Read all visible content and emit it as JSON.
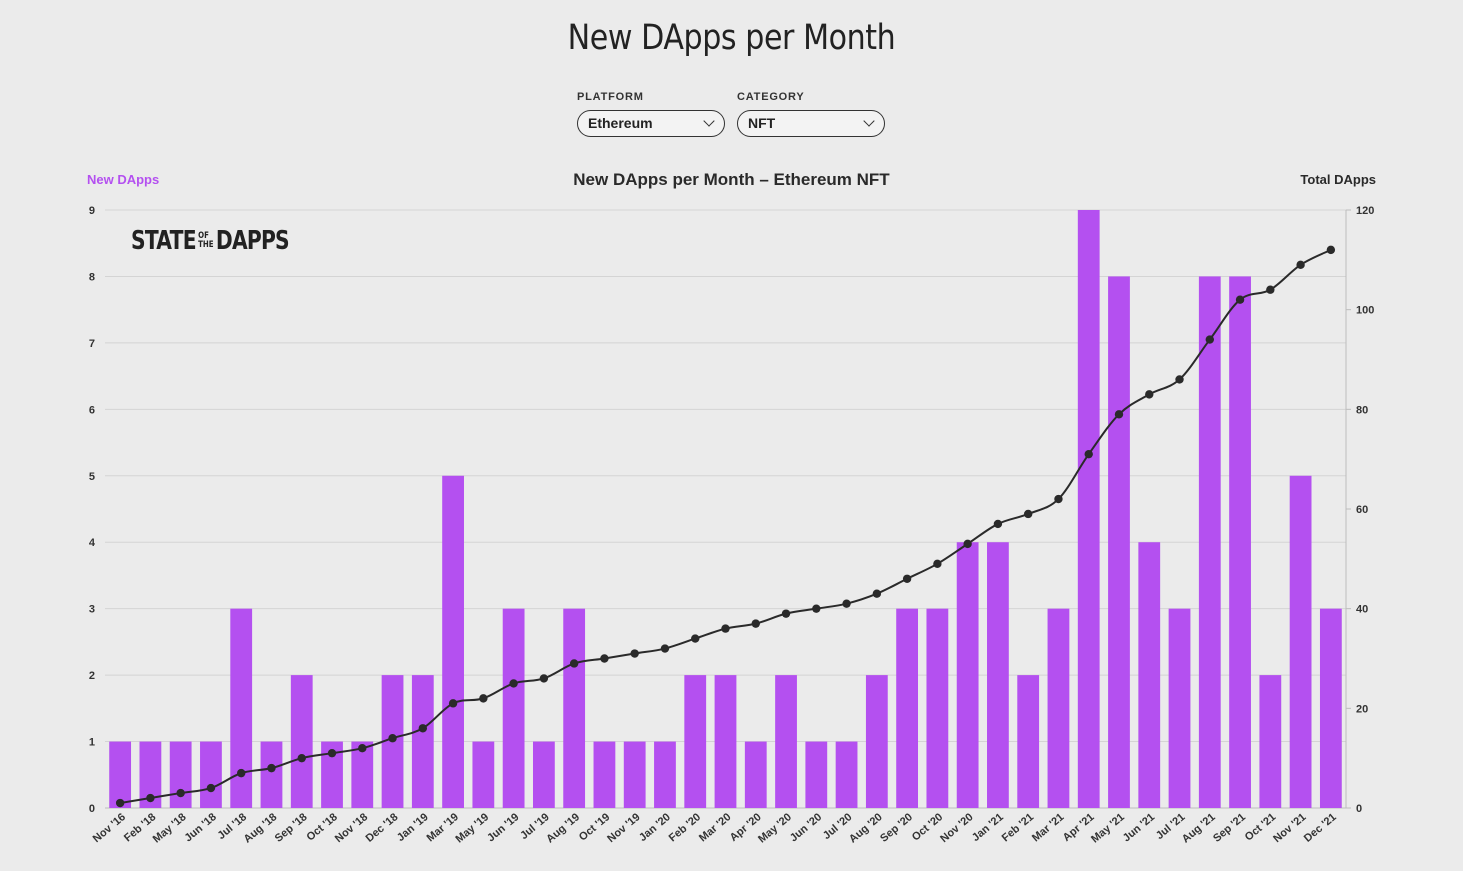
{
  "page": {
    "title": "New DApps per Month"
  },
  "filters": {
    "platform": {
      "label": "PLATFORM",
      "value": "Ethereum"
    },
    "category": {
      "label": "CATEGORY",
      "value": "NFT"
    }
  },
  "logo": {
    "text_left": "STATE",
    "text_of": "OF",
    "text_the": "THE",
    "text_right": "DAPPS"
  },
  "colors": {
    "bar": "#b450f0",
    "line": "#2a2a2a",
    "grid": "#d4d4d4",
    "axis": "#bdbdbd"
  },
  "chart_data": {
    "type": "bar",
    "title": "New DApps per Month – Ethereum NFT",
    "categories": [
      "Nov '16",
      "Feb '18",
      "May '18",
      "Jun '18",
      "Jul '18",
      "Aug '18",
      "Sep '18",
      "Oct '18",
      "Nov '18",
      "Dec '18",
      "Jan '19",
      "Mar '19",
      "May '19",
      "Jun '19",
      "Jul '19",
      "Aug '19",
      "Oct '19",
      "Nov '19",
      "Jan '20",
      "Feb '20",
      "Mar '20",
      "Apr '20",
      "May '20",
      "Jun '20",
      "Jul '20",
      "Aug '20",
      "Sep '20",
      "Oct '20",
      "Nov '20",
      "Jan '21",
      "Feb '21",
      "Mar '21",
      "Apr '21",
      "May '21",
      "Jun '21",
      "Jul '21",
      "Aug '21",
      "Sep '21",
      "Oct '21",
      "Nov '21",
      "Dec '21"
    ],
    "series": [
      {
        "name": "New DApps",
        "axis": "left",
        "kind": "bar",
        "values": [
          1,
          1,
          1,
          1,
          3,
          1,
          2,
          1,
          1,
          2,
          2,
          5,
          1,
          3,
          1,
          3,
          1,
          1,
          1,
          2,
          2,
          1,
          2,
          1,
          1,
          2,
          3,
          3,
          4,
          4,
          2,
          3,
          9,
          8,
          4,
          3,
          8,
          8,
          2,
          5,
          3
        ]
      },
      {
        "name": "Total DApps",
        "axis": "right",
        "kind": "line",
        "values": [
          1,
          2,
          3,
          4,
          7,
          8,
          10,
          11,
          12,
          14,
          16,
          21,
          22,
          25,
          26,
          29,
          30,
          31,
          32,
          34,
          36,
          37,
          39,
          40,
          41,
          43,
          46,
          49,
          53,
          57,
          59,
          62,
          71,
          79,
          83,
          86,
          94,
          102,
          104,
          109,
          112
        ]
      }
    ],
    "y_left": {
      "label": "New DApps",
      "min": 0,
      "max": 9,
      "ticks": [
        0,
        1,
        2,
        3,
        4,
        5,
        6,
        7,
        8,
        9
      ]
    },
    "y_right": {
      "label": "Total DApps",
      "min": 0,
      "max": 120,
      "ticks": [
        0,
        20,
        40,
        60,
        80,
        100,
        120
      ]
    },
    "grid": true
  }
}
